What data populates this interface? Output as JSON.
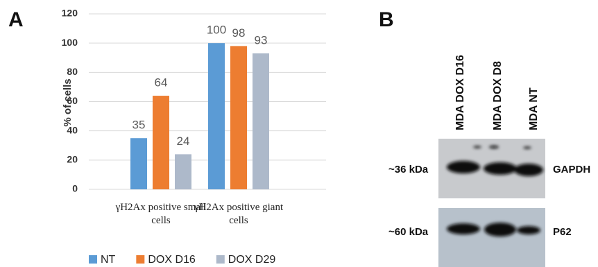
{
  "panels": {
    "a": "A",
    "b": "B"
  },
  "chart_data": {
    "type": "bar",
    "ylabel": "% of cells",
    "categories": [
      "γH2Ax positive small cells",
      "γH2Ax positive giant cells"
    ],
    "series": [
      {
        "name": "NT",
        "color": "#5b9bd5",
        "values": [
          35,
          100
        ]
      },
      {
        "name": "DOX D16",
        "color": "#ed7d31",
        "values": [
          64,
          98
        ]
      },
      {
        "name": "DOX D29",
        "color": "#adb9ca",
        "values": [
          24,
          93
        ]
      }
    ],
    "ylim": [
      0,
      120
    ],
    "yticks": [
      0,
      20,
      40,
      60,
      80,
      100,
      120
    ],
    "grid": true,
    "legend": "bottom"
  },
  "blot": {
    "lanes": [
      "MDA DOX D16",
      "MDA DOX D8",
      "MDA NT"
    ],
    "rows": [
      {
        "size": "~36 kDa",
        "protein": "GAPDH"
      },
      {
        "size": "~60 kDa",
        "protein": "P62"
      }
    ]
  }
}
